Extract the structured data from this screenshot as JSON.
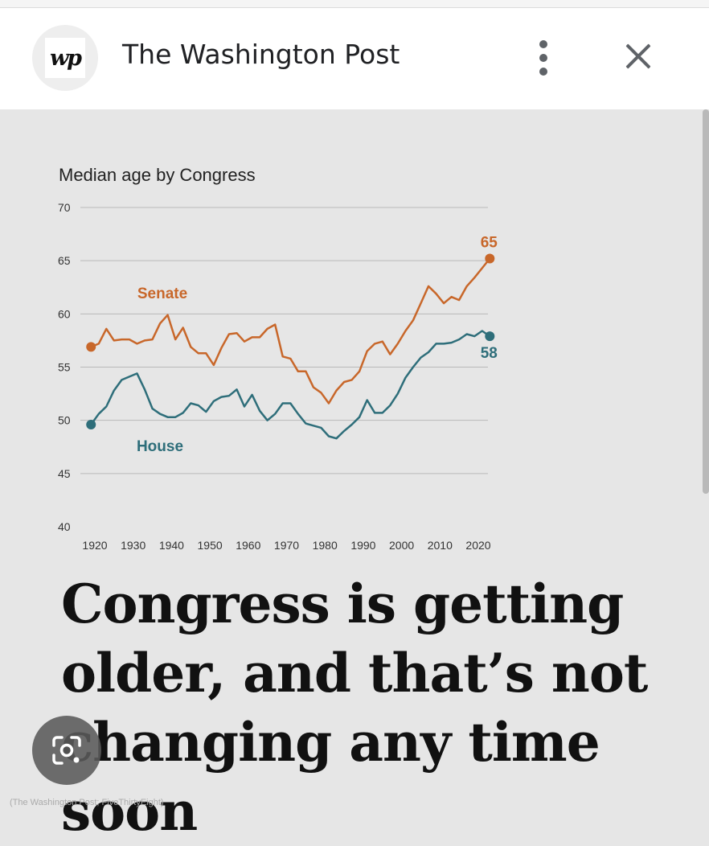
{
  "header": {
    "logo_text": "wp",
    "title": "The Washington Post",
    "menu_icon": "kebab-menu-icon",
    "close_icon": "close-icon"
  },
  "chart_data": {
    "type": "line",
    "title": "Median age by Congress",
    "ylim": [
      40,
      70
    ],
    "xlim": [
      1917,
      2023
    ],
    "y_ticks": [
      70,
      65,
      60,
      55,
      50,
      45,
      40
    ],
    "x_ticks": [
      1920,
      1930,
      1940,
      1950,
      1960,
      1970,
      1980,
      1990,
      2000,
      2010,
      2020
    ],
    "grid": true,
    "series": [
      {
        "name": "Senate",
        "color": "#c8672a",
        "end_label": "65",
        "points": [
          [
            1919,
            56.9
          ],
          [
            1921,
            57.2
          ],
          [
            1923,
            58.6
          ],
          [
            1925,
            57.5
          ],
          [
            1927,
            57.6
          ],
          [
            1929,
            57.6
          ],
          [
            1931,
            57.2
          ],
          [
            1933,
            57.5
          ],
          [
            1935,
            57.6
          ],
          [
            1937,
            59.1
          ],
          [
            1939,
            59.9
          ],
          [
            1941,
            57.6
          ],
          [
            1943,
            58.7
          ],
          [
            1945,
            56.9
          ],
          [
            1947,
            56.3
          ],
          [
            1949,
            56.3
          ],
          [
            1951,
            55.2
          ],
          [
            1953,
            56.8
          ],
          [
            1955,
            58.1
          ],
          [
            1957,
            58.2
          ],
          [
            1959,
            57.4
          ],
          [
            1961,
            57.8
          ],
          [
            1963,
            57.8
          ],
          [
            1965,
            58.6
          ],
          [
            1967,
            59.0
          ],
          [
            1969,
            56.0
          ],
          [
            1971,
            55.8
          ],
          [
            1973,
            54.6
          ],
          [
            1975,
            54.6
          ],
          [
            1977,
            53.1
          ],
          [
            1979,
            52.6
          ],
          [
            1981,
            51.6
          ],
          [
            1983,
            52.8
          ],
          [
            1985,
            53.6
          ],
          [
            1987,
            53.8
          ],
          [
            1989,
            54.6
          ],
          [
            1991,
            56.5
          ],
          [
            1993,
            57.2
          ],
          [
            1995,
            57.4
          ],
          [
            1997,
            56.2
          ],
          [
            1999,
            57.2
          ],
          [
            2001,
            58.4
          ],
          [
            2003,
            59.4
          ],
          [
            2005,
            61.0
          ],
          [
            2007,
            62.6
          ],
          [
            2009,
            61.9
          ],
          [
            2011,
            61.0
          ],
          [
            2013,
            61.6
          ],
          [
            2015,
            61.3
          ],
          [
            2017,
            62.6
          ],
          [
            2019,
            63.4
          ],
          [
            2021,
            64.3
          ],
          [
            2023,
            65.2
          ]
        ]
      },
      {
        "name": "House",
        "color": "#2e6e7a",
        "end_label": "58",
        "points": [
          [
            1919,
            49.6
          ],
          [
            1921,
            50.6
          ],
          [
            1923,
            51.3
          ],
          [
            1925,
            52.8
          ],
          [
            1927,
            53.8
          ],
          [
            1929,
            54.1
          ],
          [
            1931,
            54.4
          ],
          [
            1933,
            52.9
          ],
          [
            1935,
            51.1
          ],
          [
            1937,
            50.6
          ],
          [
            1939,
            50.3
          ],
          [
            1941,
            50.3
          ],
          [
            1943,
            50.7
          ],
          [
            1945,
            51.6
          ],
          [
            1947,
            51.4
          ],
          [
            1949,
            50.8
          ],
          [
            1951,
            51.8
          ],
          [
            1953,
            52.2
          ],
          [
            1955,
            52.3
          ],
          [
            1957,
            52.9
          ],
          [
            1959,
            51.3
          ],
          [
            1961,
            52.4
          ],
          [
            1963,
            50.9
          ],
          [
            1965,
            50.0
          ],
          [
            1967,
            50.6
          ],
          [
            1969,
            51.6
          ],
          [
            1971,
            51.6
          ],
          [
            1973,
            50.6
          ],
          [
            1975,
            49.7
          ],
          [
            1977,
            49.5
          ],
          [
            1979,
            49.3
          ],
          [
            1981,
            48.5
          ],
          [
            1983,
            48.3
          ],
          [
            1985,
            49.0
          ],
          [
            1987,
            49.6
          ],
          [
            1989,
            50.3
          ],
          [
            1991,
            51.9
          ],
          [
            1993,
            50.7
          ],
          [
            1995,
            50.7
          ],
          [
            1997,
            51.4
          ],
          [
            1999,
            52.5
          ],
          [
            2001,
            54.0
          ],
          [
            2003,
            55.0
          ],
          [
            2005,
            55.9
          ],
          [
            2007,
            56.4
          ],
          [
            2009,
            57.2
          ],
          [
            2011,
            57.2
          ],
          [
            2013,
            57.3
          ],
          [
            2015,
            57.6
          ],
          [
            2017,
            58.1
          ],
          [
            2019,
            57.9
          ],
          [
            2021,
            58.4
          ],
          [
            2023,
            57.9
          ]
        ]
      }
    ]
  },
  "headline": "Congress is getting older, and that’s not changing any time soon",
  "credit": "(The Washington Post; FiveThirtyEight)",
  "lens_icon": "google-lens-icon"
}
